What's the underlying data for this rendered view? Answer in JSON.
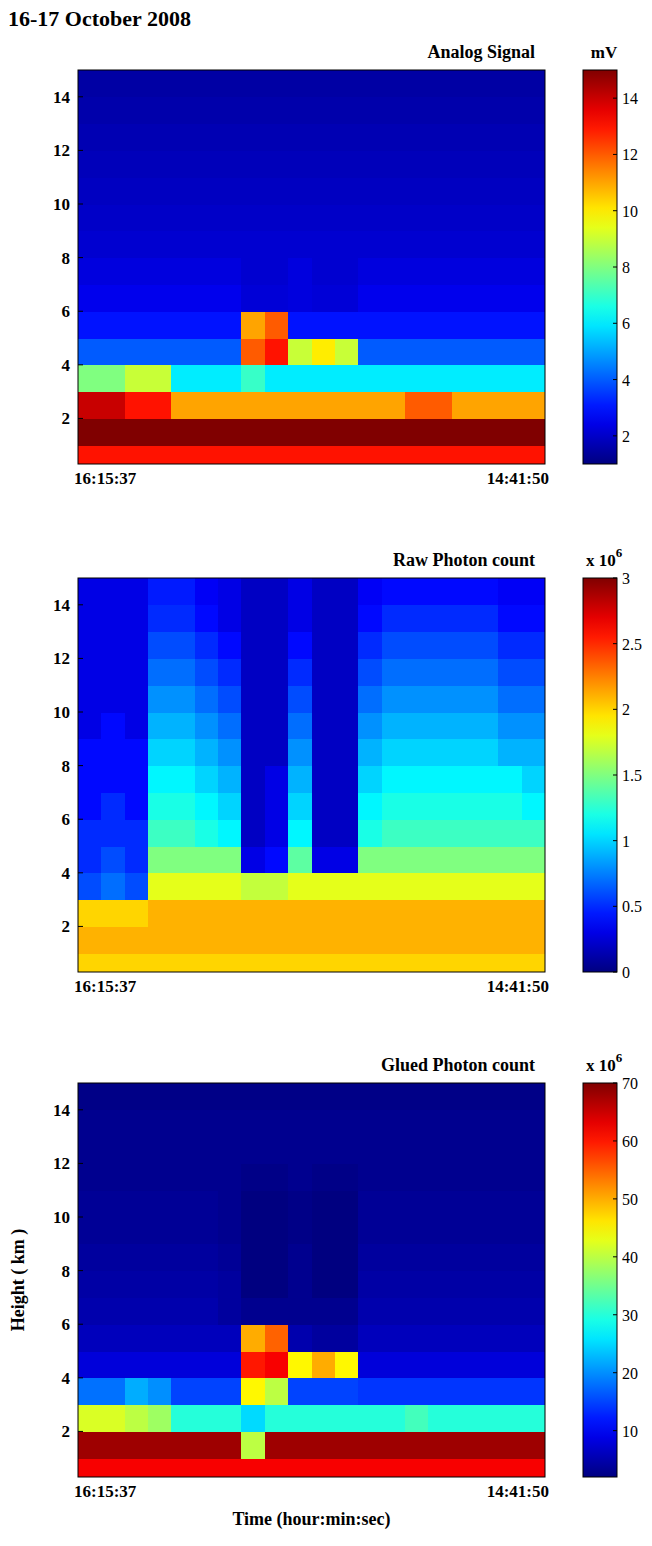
{
  "title": "16-17 October 2008",
  "chart_data": [
    {
      "type": "heatmap",
      "title": "Analog Signal",
      "x": [
        "16:15:37",
        null,
        null,
        null,
        null,
        null,
        null,
        null,
        null,
        null,
        null,
        null,
        null,
        null,
        null,
        null,
        null,
        null,
        null,
        "14:41:50"
      ],
      "ylim": [
        0.3,
        15
      ],
      "yticks": [
        2,
        4,
        6,
        8,
        10,
        12,
        14
      ],
      "y_edges": [
        0.3,
        1,
        2,
        3,
        4,
        5,
        6,
        7,
        8,
        9,
        10,
        11,
        12,
        13,
        14,
        15
      ],
      "colorbar_title": "mV",
      "colorbar_lim": [
        1,
        15
      ],
      "colorbar_ticks": [
        2,
        4,
        6,
        8,
        10,
        12,
        14
      ],
      "z": [
        [
          13,
          13,
          13,
          13,
          13,
          13,
          13,
          13,
          13,
          13,
          13,
          13,
          13,
          13,
          13,
          13,
          13,
          13,
          13,
          13
        ],
        [
          15,
          15,
          15,
          15,
          15,
          15,
          15,
          15,
          15,
          15,
          15,
          15,
          15,
          15,
          15,
          15,
          15,
          15,
          15,
          15
        ],
        [
          14,
          14,
          13,
          13,
          11,
          11,
          11,
          11,
          11,
          11,
          11,
          11,
          11,
          11,
          12,
          12,
          11,
          11,
          11,
          11
        ],
        [
          8,
          8,
          9,
          9,
          6,
          6,
          6,
          7,
          6,
          6,
          6,
          6,
          6,
          6,
          6,
          6,
          6,
          6,
          6,
          6
        ],
        [
          4,
          4,
          4,
          4,
          4,
          4,
          4,
          12,
          13,
          9,
          10,
          9,
          4,
          4,
          4,
          4,
          4,
          4,
          4,
          4
        ],
        [
          3,
          3,
          3,
          3,
          3,
          3,
          3,
          11,
          12,
          3,
          3,
          3,
          3,
          3,
          3,
          3,
          3,
          3,
          3,
          3
        ],
        [
          2.5,
          2.5,
          2.5,
          2.5,
          2.5,
          2.5,
          2.5,
          2.2,
          2.2,
          2.3,
          2.2,
          2.2,
          2.5,
          2.5,
          2.5,
          2.5,
          2.5,
          2.5,
          2.5,
          2.5
        ],
        [
          2.3,
          2.3,
          2.3,
          2.3,
          2.3,
          2.3,
          2.3,
          2.1,
          2.1,
          2.3,
          2.1,
          2.1,
          2.3,
          2.3,
          2.3,
          2.3,
          2.3,
          2.3,
          2.3,
          2.3
        ],
        [
          2.1,
          2.1,
          2.1,
          2.1,
          2.1,
          2.1,
          2.1,
          2.1,
          2.1,
          2.1,
          2.1,
          2.1,
          2.1,
          2.1,
          2.1,
          2.1,
          2.1,
          2.1,
          2.1,
          2.1
        ],
        [
          2,
          2,
          2,
          2,
          2,
          2,
          2,
          2,
          2,
          2,
          2,
          2,
          2,
          2,
          2,
          2,
          2,
          2,
          2,
          2
        ],
        [
          1.9,
          1.9,
          1.9,
          1.9,
          1.9,
          1.9,
          1.9,
          1.9,
          1.9,
          1.9,
          1.9,
          1.9,
          1.9,
          1.9,
          1.9,
          1.9,
          1.9,
          1.9,
          1.9,
          1.9
        ],
        [
          1.8,
          1.8,
          1.8,
          1.8,
          1.8,
          1.8,
          1.8,
          1.8,
          1.8,
          1.8,
          1.8,
          1.8,
          1.8,
          1.8,
          1.8,
          1.8,
          1.8,
          1.8,
          1.8,
          1.8
        ],
        [
          1.7,
          1.7,
          1.7,
          1.7,
          1.7,
          1.7,
          1.7,
          1.7,
          1.7,
          1.7,
          1.7,
          1.7,
          1.7,
          1.7,
          1.7,
          1.7,
          1.7,
          1.7,
          1.7,
          1.7
        ],
        [
          1.6,
          1.6,
          1.6,
          1.6,
          1.6,
          1.6,
          1.6,
          1.6,
          1.6,
          1.6,
          1.6,
          1.6,
          1.6,
          1.6,
          1.6,
          1.6,
          1.6,
          1.6,
          1.6,
          1.6
        ],
        [
          1.5,
          1.5,
          1.5,
          1.5,
          1.5,
          1.5,
          1.5,
          1.5,
          1.5,
          1.5,
          1.5,
          1.5,
          1.5,
          1.5,
          1.5,
          1.5,
          1.5,
          1.5,
          1.5,
          1.5
        ]
      ]
    },
    {
      "type": "heatmap",
      "title": "Raw Photon count",
      "x": [
        "16:15:37",
        null,
        null,
        null,
        null,
        null,
        null,
        null,
        null,
        null,
        null,
        null,
        null,
        null,
        null,
        null,
        null,
        null,
        null,
        "14:41:50"
      ],
      "ylim": [
        0.3,
        15
      ],
      "yticks": [
        2,
        4,
        6,
        8,
        10,
        12,
        14
      ],
      "y_edges": [
        0.3,
        1,
        2,
        3,
        4,
        5,
        6,
        7,
        8,
        9,
        10,
        11,
        12,
        13,
        14,
        15
      ],
      "colorbar_title": "x 10",
      "colorbar_exponent": "6",
      "colorbar_lim": [
        0,
        3
      ],
      "colorbar_ticks": [
        0,
        0.5,
        1,
        1.5,
        2,
        2.5,
        3
      ],
      "z": [
        [
          2,
          2,
          2,
          2,
          2,
          2,
          2,
          2,
          2,
          2,
          2,
          2,
          2,
          2,
          2,
          2,
          2,
          2,
          2,
          2
        ],
        [
          2.1,
          2.1,
          2.1,
          2.1,
          2.1,
          2.1,
          2.1,
          2.1,
          2.1,
          2.1,
          2.1,
          2.1,
          2.1,
          2.1,
          2.1,
          2.1,
          2.1,
          2.1,
          2.1,
          2.1
        ],
        [
          2,
          2,
          2,
          2.1,
          2.1,
          2.1,
          2.1,
          2.1,
          2.1,
          2.1,
          2.1,
          2.1,
          2.1,
          2.1,
          2.1,
          2.1,
          2.1,
          2.1,
          2.1,
          2.1
        ],
        [
          0.6,
          0.7,
          0.6,
          1.8,
          1.8,
          1.8,
          1.8,
          1.7,
          1.7,
          1.8,
          1.8,
          1.8,
          1.8,
          1.8,
          1.8,
          1.8,
          1.8,
          1.8,
          1.8,
          1.8
        ],
        [
          0.5,
          0.6,
          0.5,
          1.5,
          1.5,
          1.5,
          1.5,
          0.3,
          0.4,
          1.4,
          0.3,
          0.3,
          1.5,
          1.5,
          1.5,
          1.5,
          1.5,
          1.5,
          1.5,
          1.5
        ],
        [
          0.5,
          0.5,
          0.5,
          1.3,
          1.3,
          1.2,
          1.1,
          0.2,
          0.3,
          1.1,
          0.2,
          0.2,
          1.2,
          1.3,
          1.3,
          1.3,
          1.3,
          1.3,
          1.3,
          1.3
        ],
        [
          0.4,
          0.5,
          0.4,
          1.2,
          1.2,
          1.1,
          1,
          0.2,
          0.3,
          1,
          0.2,
          0.2,
          1.1,
          1.2,
          1.2,
          1.2,
          1.2,
          1.2,
          1.2,
          1.1
        ],
        [
          0.4,
          0.4,
          0.4,
          1.1,
          1.1,
          1,
          0.9,
          0.2,
          0.3,
          0.9,
          0.2,
          0.2,
          1,
          1.1,
          1.1,
          1.1,
          1.1,
          1.1,
          1.1,
          1
        ],
        [
          0.4,
          0.4,
          0.4,
          1,
          1,
          0.9,
          0.8,
          0.2,
          0.2,
          0.8,
          0.2,
          0.2,
          0.9,
          1,
          1,
          1,
          1,
          1,
          0.9,
          0.9
        ],
        [
          0.3,
          0.4,
          0.3,
          0.9,
          0.9,
          0.8,
          0.7,
          0.2,
          0.2,
          0.7,
          0.2,
          0.2,
          0.8,
          0.9,
          0.9,
          0.9,
          0.9,
          0.9,
          0.8,
          0.8
        ],
        [
          0.3,
          0.3,
          0.3,
          0.8,
          0.8,
          0.7,
          0.6,
          0.2,
          0.2,
          0.6,
          0.2,
          0.2,
          0.7,
          0.8,
          0.8,
          0.8,
          0.8,
          0.8,
          0.7,
          0.7
        ],
        [
          0.3,
          0.3,
          0.3,
          0.7,
          0.7,
          0.6,
          0.5,
          0.2,
          0.2,
          0.5,
          0.2,
          0.2,
          0.6,
          0.7,
          0.7,
          0.7,
          0.7,
          0.7,
          0.6,
          0.6
        ],
        [
          0.3,
          0.3,
          0.3,
          0.6,
          0.6,
          0.5,
          0.4,
          0.2,
          0.2,
          0.4,
          0.2,
          0.2,
          0.5,
          0.6,
          0.6,
          0.6,
          0.6,
          0.6,
          0.5,
          0.5
        ],
        [
          0.3,
          0.3,
          0.3,
          0.5,
          0.5,
          0.4,
          0.3,
          0.2,
          0.2,
          0.3,
          0.2,
          0.2,
          0.4,
          0.5,
          0.5,
          0.5,
          0.5,
          0.5,
          0.4,
          0.4
        ],
        [
          0.3,
          0.3,
          0.3,
          0.45,
          0.45,
          0.35,
          0.3,
          0.2,
          0.2,
          0.3,
          0.2,
          0.2,
          0.35,
          0.4,
          0.4,
          0.4,
          0.4,
          0.4,
          0.35,
          0.35
        ]
      ]
    },
    {
      "type": "heatmap",
      "title": "Glued Photon count",
      "x": [
        "16:15:37",
        null,
        null,
        null,
        null,
        null,
        null,
        null,
        null,
        null,
        null,
        null,
        null,
        null,
        null,
        null,
        null,
        null,
        null,
        "14:41:50"
      ],
      "xlabel": "Time (hour:min:sec)",
      "ylabel": "Height ( km )",
      "ylim": [
        0.3,
        15
      ],
      "yticks": [
        2,
        4,
        6,
        8,
        10,
        12,
        14
      ],
      "y_edges": [
        0.3,
        1,
        2,
        3,
        4,
        5,
        6,
        7,
        8,
        9,
        10,
        11,
        12,
        13,
        14,
        15
      ],
      "colorbar_title": "x 10",
      "colorbar_exponent": "6",
      "colorbar_lim": [
        2,
        70
      ],
      "colorbar_ticks": [
        10,
        20,
        30,
        40,
        50,
        60,
        70
      ],
      "z": [
        [
          62,
          62,
          62,
          62,
          62,
          62,
          62,
          62,
          62,
          62,
          62,
          62,
          62,
          62,
          62,
          62,
          62,
          62,
          62,
          62
        ],
        [
          68,
          68,
          68,
          68,
          68,
          68,
          68,
          40,
          68,
          68,
          68,
          68,
          68,
          68,
          68,
          68,
          68,
          68,
          68,
          68
        ],
        [
          42,
          42,
          40,
          38,
          30,
          30,
          30,
          25,
          30,
          30,
          30,
          30,
          30,
          30,
          32,
          30,
          30,
          30,
          30,
          30
        ],
        [
          18,
          18,
          22,
          20,
          15,
          15,
          15,
          45,
          40,
          15,
          15,
          15,
          14,
          14,
          14,
          14,
          14,
          14,
          14,
          14
        ],
        [
          8,
          8,
          8,
          8,
          8,
          8,
          8,
          60,
          62,
          45,
          50,
          45,
          8,
          8,
          8,
          8,
          8,
          8,
          8,
          8
        ],
        [
          6,
          6,
          6,
          6,
          6,
          6,
          6,
          50,
          55,
          5,
          4,
          4,
          6,
          6,
          6,
          6,
          6,
          6,
          6,
          6
        ],
        [
          5,
          5,
          5,
          5,
          5,
          5,
          4,
          3,
          3,
          3,
          3,
          3,
          5,
          5,
          5,
          5,
          5,
          5,
          5,
          5
        ],
        [
          4.5,
          4.5,
          4.5,
          4.5,
          4.5,
          4.5,
          4,
          2,
          2,
          3,
          2,
          2,
          4.5,
          4.5,
          4.5,
          4.5,
          4.5,
          4.5,
          4.5,
          4.5
        ],
        [
          4,
          4,
          4,
          4,
          4,
          4,
          3.5,
          2,
          2,
          3,
          2,
          2,
          4,
          4,
          4,
          4,
          4,
          4,
          4,
          4
        ],
        [
          3.5,
          3.5,
          3.5,
          3.5,
          3.5,
          3.5,
          3,
          2,
          2,
          2.5,
          2,
          2,
          3.5,
          3.5,
          3.5,
          3.5,
          3.5,
          3.5,
          3.5,
          3.5
        ],
        [
          3.5,
          3.5,
          3.5,
          3.5,
          3.5,
          3.5,
          3,
          2,
          2,
          2.5,
          2,
          2,
          3.5,
          3.5,
          3.5,
          3.5,
          3.5,
          3.5,
          3.5,
          3.5
        ],
        [
          3,
          3,
          3,
          3,
          3,
          3,
          3,
          2.5,
          2.5,
          3,
          2.5,
          2.5,
          3,
          3,
          3,
          3,
          3,
          3,
          3,
          3
        ],
        [
          3,
          3,
          3,
          3,
          3,
          3,
          3,
          3,
          3,
          3,
          3,
          3,
          3,
          3,
          3,
          3,
          3,
          3,
          3,
          3
        ],
        [
          3,
          3,
          3,
          3,
          3,
          3,
          3,
          3,
          3,
          3,
          3,
          3,
          3,
          3,
          3,
          3,
          3,
          3,
          3,
          3
        ],
        [
          2.5,
          2.5,
          2.5,
          2.5,
          2.5,
          2.5,
          2.5,
          2.5,
          2.5,
          2.5,
          2.5,
          2.5,
          2.5,
          2.5,
          2.5,
          2.5,
          2.5,
          2.5,
          2.5,
          2.5
        ]
      ]
    }
  ]
}
